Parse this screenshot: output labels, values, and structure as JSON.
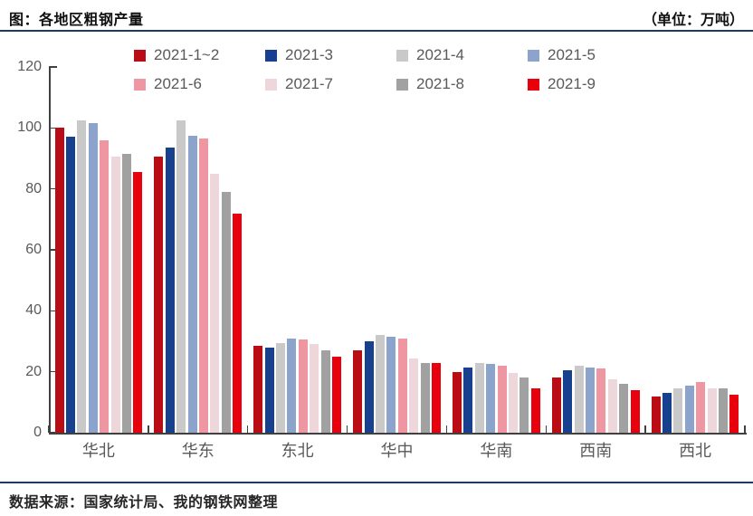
{
  "header": {
    "title": "图：各地区粗钢产量",
    "unit": "（单位：万吨）"
  },
  "footer": {
    "source": "数据来源：国家统计局、我的钢铁网整理"
  },
  "chart_data": {
    "type": "bar",
    "title": "各地区粗钢产量",
    "unit": "万吨",
    "categories": [
      "华北",
      "华东",
      "东北",
      "华中",
      "华南",
      "西南",
      "西北"
    ],
    "series": [
      {
        "name": "2021-1~2",
        "color": "#b90c15",
        "values": [
          100,
          90.5,
          28.5,
          27,
          20,
          18,
          12
        ]
      },
      {
        "name": "2021-3",
        "color": "#17408f",
        "values": [
          97,
          93.5,
          28,
          30,
          21.5,
          20.5,
          13
        ]
      },
      {
        "name": "2021-4",
        "color": "#c9c9c9",
        "values": [
          102.5,
          102.5,
          29.5,
          32,
          23,
          22,
          14.5
        ]
      },
      {
        "name": "2021-5",
        "color": "#8ca3cc",
        "values": [
          101.5,
          97.5,
          31,
          31.5,
          22.5,
          21.5,
          15.5
        ]
      },
      {
        "name": "2021-6",
        "color": "#ef96a3",
        "values": [
          96,
          96.5,
          30.5,
          31,
          22,
          21,
          16.5
        ]
      },
      {
        "name": "2021-7",
        "color": "#eed7da",
        "values": [
          90.5,
          85,
          29,
          24.5,
          19.5,
          17.5,
          14.5
        ]
      },
      {
        "name": "2021-8",
        "color": "#a1a1a1",
        "values": [
          91.5,
          79,
          27,
          23,
          18,
          16,
          14.5
        ]
      },
      {
        "name": "2021-9",
        "color": "#e8000d",
        "values": [
          85.5,
          72,
          25,
          23,
          14.5,
          14,
          12.5
        ]
      }
    ],
    "ylim": [
      0,
      120
    ],
    "ytick_step": 20,
    "grid": false,
    "legend_position": "top"
  }
}
